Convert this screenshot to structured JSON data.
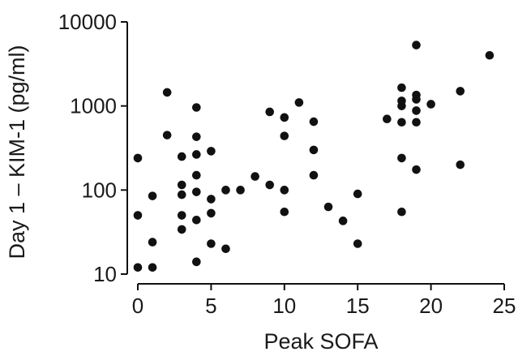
{
  "chart_data": {
    "type": "scatter",
    "title": "",
    "xlabel": "Peak SOFA",
    "ylabel": "Day 1 – KIM-1 (pg/ml)",
    "xlim": [
      0,
      25
    ],
    "ylim": [
      10,
      10000
    ],
    "yscale": "log",
    "xticks": [
      0,
      5,
      10,
      15,
      20,
      25
    ],
    "xtick_labels": [
      "0",
      "5",
      "10",
      "15",
      "20",
      "25"
    ],
    "yticks": [
      10,
      100,
      1000,
      10000
    ],
    "ytick_labels": [
      "10",
      "100",
      "1000",
      "10000"
    ],
    "grid": false,
    "marker_color": "#111111",
    "series": [
      {
        "points": [
          {
            "x": 0,
            "y": 240
          },
          {
            "x": 0,
            "y": 50
          },
          {
            "x": 0,
            "y": 12
          },
          {
            "x": 1,
            "y": 85
          },
          {
            "x": 1,
            "y": 24
          },
          {
            "x": 1,
            "y": 12
          },
          {
            "x": 2,
            "y": 1450
          },
          {
            "x": 2,
            "y": 450
          },
          {
            "x": 3,
            "y": 250
          },
          {
            "x": 3,
            "y": 115
          },
          {
            "x": 3,
            "y": 88
          },
          {
            "x": 3,
            "y": 50
          },
          {
            "x": 3,
            "y": 34
          },
          {
            "x": 4,
            "y": 960
          },
          {
            "x": 4,
            "y": 430
          },
          {
            "x": 4,
            "y": 265
          },
          {
            "x": 4,
            "y": 150
          },
          {
            "x": 4,
            "y": 95
          },
          {
            "x": 4,
            "y": 44
          },
          {
            "x": 4,
            "y": 14
          },
          {
            "x": 5,
            "y": 290
          },
          {
            "x": 5,
            "y": 78
          },
          {
            "x": 5,
            "y": 53
          },
          {
            "x": 5,
            "y": 23
          },
          {
            "x": 6,
            "y": 100
          },
          {
            "x": 6,
            "y": 20
          },
          {
            "x": 7,
            "y": 100
          },
          {
            "x": 8,
            "y": 145
          },
          {
            "x": 9,
            "y": 850
          },
          {
            "x": 9,
            "y": 115
          },
          {
            "x": 10,
            "y": 730
          },
          {
            "x": 10,
            "y": 440
          },
          {
            "x": 10,
            "y": 100
          },
          {
            "x": 10,
            "y": 55
          },
          {
            "x": 11,
            "y": 1100
          },
          {
            "x": 12,
            "y": 650
          },
          {
            "x": 12,
            "y": 300
          },
          {
            "x": 12,
            "y": 150
          },
          {
            "x": 13,
            "y": 63
          },
          {
            "x": 14,
            "y": 43
          },
          {
            "x": 15,
            "y": 90
          },
          {
            "x": 15,
            "y": 23
          },
          {
            "x": 17,
            "y": 700
          },
          {
            "x": 18,
            "y": 1650
          },
          {
            "x": 18,
            "y": 1150
          },
          {
            "x": 18,
            "y": 1000
          },
          {
            "x": 18,
            "y": 640
          },
          {
            "x": 18,
            "y": 240
          },
          {
            "x": 18,
            "y": 55
          },
          {
            "x": 19,
            "y": 5300
          },
          {
            "x": 19,
            "y": 1350
          },
          {
            "x": 19,
            "y": 1200
          },
          {
            "x": 19,
            "y": 880
          },
          {
            "x": 19,
            "y": 640
          },
          {
            "x": 19,
            "y": 175
          },
          {
            "x": 20,
            "y": 1050
          },
          {
            "x": 22,
            "y": 1500
          },
          {
            "x": 22,
            "y": 200
          },
          {
            "x": 24,
            "y": 4000
          }
        ]
      }
    ]
  }
}
